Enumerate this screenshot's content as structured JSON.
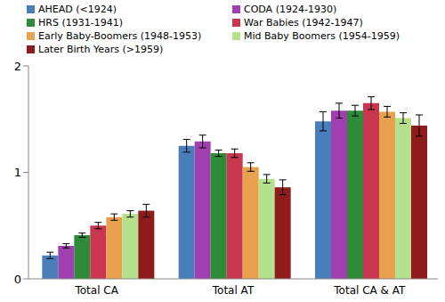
{
  "chart_data": {
    "type": "bar",
    "categories": [
      "Total CA",
      "Total AT",
      "Total CA & AT"
    ],
    "ylim": [
      0,
      2
    ],
    "yticks": [
      0,
      1,
      2
    ],
    "grid": false,
    "legend": "top",
    "series": [
      {
        "name": "AHEAD (<1924)",
        "color": "#4a7ebb",
        "values": [
          0.22,
          1.25,
          1.48
        ],
        "errors": [
          0.03,
          0.06,
          0.09
        ]
      },
      {
        "name": "CODA (1924-1930)",
        "color": "#a040b0",
        "values": [
          0.31,
          1.29,
          1.58
        ],
        "errors": [
          0.02,
          0.06,
          0.07
        ]
      },
      {
        "name": "HRS (1931-1941)",
        "color": "#2e8b3a",
        "values": [
          0.41,
          1.18,
          1.58
        ],
        "errors": [
          0.02,
          0.03,
          0.05
        ]
      },
      {
        "name": "War Babies (1942-1947)",
        "color": "#c8364f",
        "values": [
          0.5,
          1.18,
          1.65
        ],
        "errors": [
          0.03,
          0.04,
          0.06
        ]
      },
      {
        "name": "Early Baby-Boomers (1948-1953)",
        "color": "#e8a14c",
        "values": [
          0.58,
          1.05,
          1.57
        ],
        "errors": [
          0.03,
          0.04,
          0.05
        ]
      },
      {
        "name": "Mid Baby Boomers (1954-1959)",
        "color": "#b5e08c",
        "values": [
          0.61,
          0.94,
          1.51
        ],
        "errors": [
          0.03,
          0.04,
          0.05
        ]
      },
      {
        "name": "Later Birth Years (>1959)",
        "color": "#8e1c1c",
        "values": [
          0.64,
          0.86,
          1.44
        ],
        "errors": [
          0.06,
          0.07,
          0.1
        ]
      }
    ]
  }
}
